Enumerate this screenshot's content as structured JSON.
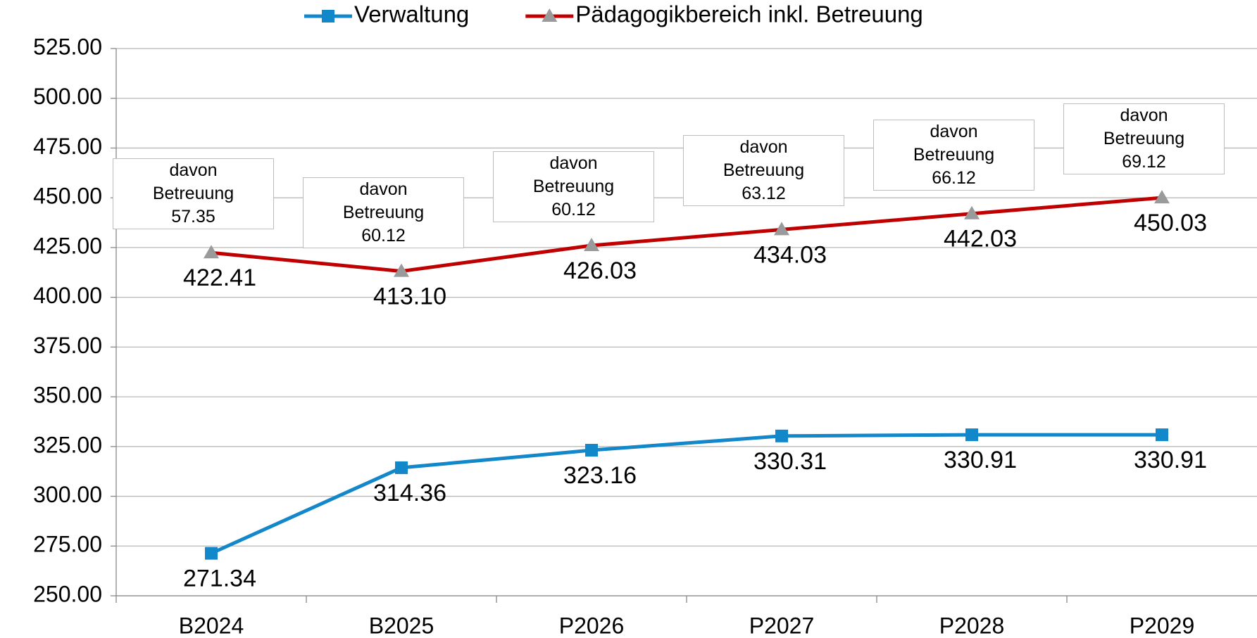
{
  "chart_data": {
    "type": "line",
    "categories": [
      "B2024",
      "B2025",
      "P2026",
      "P2027",
      "P2028",
      "P2029"
    ],
    "series": [
      {
        "name": "Verwaltung",
        "color": "#1287c9",
        "marker": "square",
        "marker_color": "#1287c9",
        "values": [
          271.34,
          314.36,
          323.16,
          330.31,
          330.91,
          330.91
        ],
        "value_labels": [
          "271.34",
          "314.36",
          "323.16",
          "330.31",
          "330.91",
          "330.91"
        ]
      },
      {
        "name": "Pädagogikbereich inkl. Betreuung",
        "color": "#c00000",
        "marker": "triangle",
        "marker_color": "#9a9a9a",
        "values": [
          422.41,
          413.1,
          426.03,
          434.03,
          442.03,
          450.03
        ],
        "value_labels": [
          "422.41",
          "413.10",
          "426.03",
          "434.03",
          "442.03",
          "450.03"
        ]
      }
    ],
    "annotations": [
      "davon\nBetreuung\n57.35",
      "davon\nBetreuung\n60.12",
      "davon\nBetreuung\n60.12",
      "davon\nBetreuung\n63.12",
      "davon\nBetreuung\n66.12",
      "davon\nBetreuung\n69.12"
    ],
    "ylim": [
      250,
      525
    ],
    "yticks": [
      {
        "value": 250,
        "label": "250.00"
      },
      {
        "value": 275,
        "label": "275.00"
      },
      {
        "value": 300,
        "label": "300.00"
      },
      {
        "value": 325,
        "label": "325.00"
      },
      {
        "value": 350,
        "label": "350.00"
      },
      {
        "value": 375,
        "label": "375.00"
      },
      {
        "value": 400,
        "label": "400.00"
      },
      {
        "value": 425,
        "label": "425.00"
      },
      {
        "value": 450,
        "label": "450.00"
      },
      {
        "value": 475,
        "label": "475.00"
      },
      {
        "value": 500,
        "label": "500.00"
      },
      {
        "value": 525,
        "label": "525.00"
      }
    ],
    "grid": true,
    "legend": "top"
  }
}
